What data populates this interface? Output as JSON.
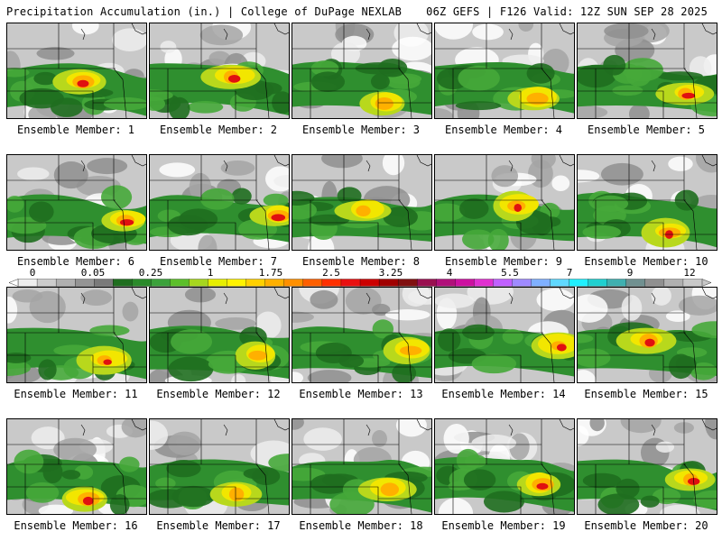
{
  "header": {
    "left": "Precipitation Accumulation (in.) | College of DuPage NEXLAB",
    "right": "06Z GEFS | F126 Valid: 12Z SUN SEP 28 2025"
  },
  "panels": [
    {
      "label": "Ensemble Member: 1"
    },
    {
      "label": "Ensemble Member: 2"
    },
    {
      "label": "Ensemble Member: 3"
    },
    {
      "label": "Ensemble Member: 4"
    },
    {
      "label": "Ensemble Member: 5"
    },
    {
      "label": "Ensemble Member: 6"
    },
    {
      "label": "Ensemble Member: 7"
    },
    {
      "label": "Ensemble Member: 8"
    },
    {
      "label": "Ensemble Member: 9"
    },
    {
      "label": "Ensemble Member: 10"
    },
    {
      "label": "Ensemble Member: 11"
    },
    {
      "label": "Ensemble Member: 12"
    },
    {
      "label": "Ensemble Member: 13"
    },
    {
      "label": "Ensemble Member: 14"
    },
    {
      "label": "Ensemble Member: 15"
    },
    {
      "label": "Ensemble Member: 16"
    },
    {
      "label": "Ensemble Member: 17"
    },
    {
      "label": "Ensemble Member: 18"
    },
    {
      "label": "Ensemble Member: 19"
    },
    {
      "label": "Ensemble Member: 20"
    }
  ],
  "colorbar": {
    "labels": [
      "0",
      "0.05",
      "0.25",
      "1",
      "1.75",
      "2.5",
      "3.25",
      "4",
      "5.5",
      "7",
      "9",
      "12"
    ],
    "colors": [
      "#eeeeee",
      "#cccccc",
      "#b0b0b0",
      "#949494",
      "#7a7a7a",
      "#1f6e1f",
      "#2a8a2a",
      "#3ba23b",
      "#5cbf2a",
      "#a6d61e",
      "#e6ee00",
      "#fff200",
      "#ffd000",
      "#ffb000",
      "#ff9000",
      "#ff6000",
      "#ff3000",
      "#e81010",
      "#cc0000",
      "#a00000",
      "#801010",
      "#991050",
      "#b0107a",
      "#cc10a0",
      "#e030d0",
      "#c060ff",
      "#9f8aff",
      "#7fb0ff",
      "#60d8ff",
      "#20f0ff",
      "#20d0d0",
      "#40b0b0",
      "#709090",
      "#909090",
      "#b0b0b0",
      "#c8c8c8"
    ]
  }
}
